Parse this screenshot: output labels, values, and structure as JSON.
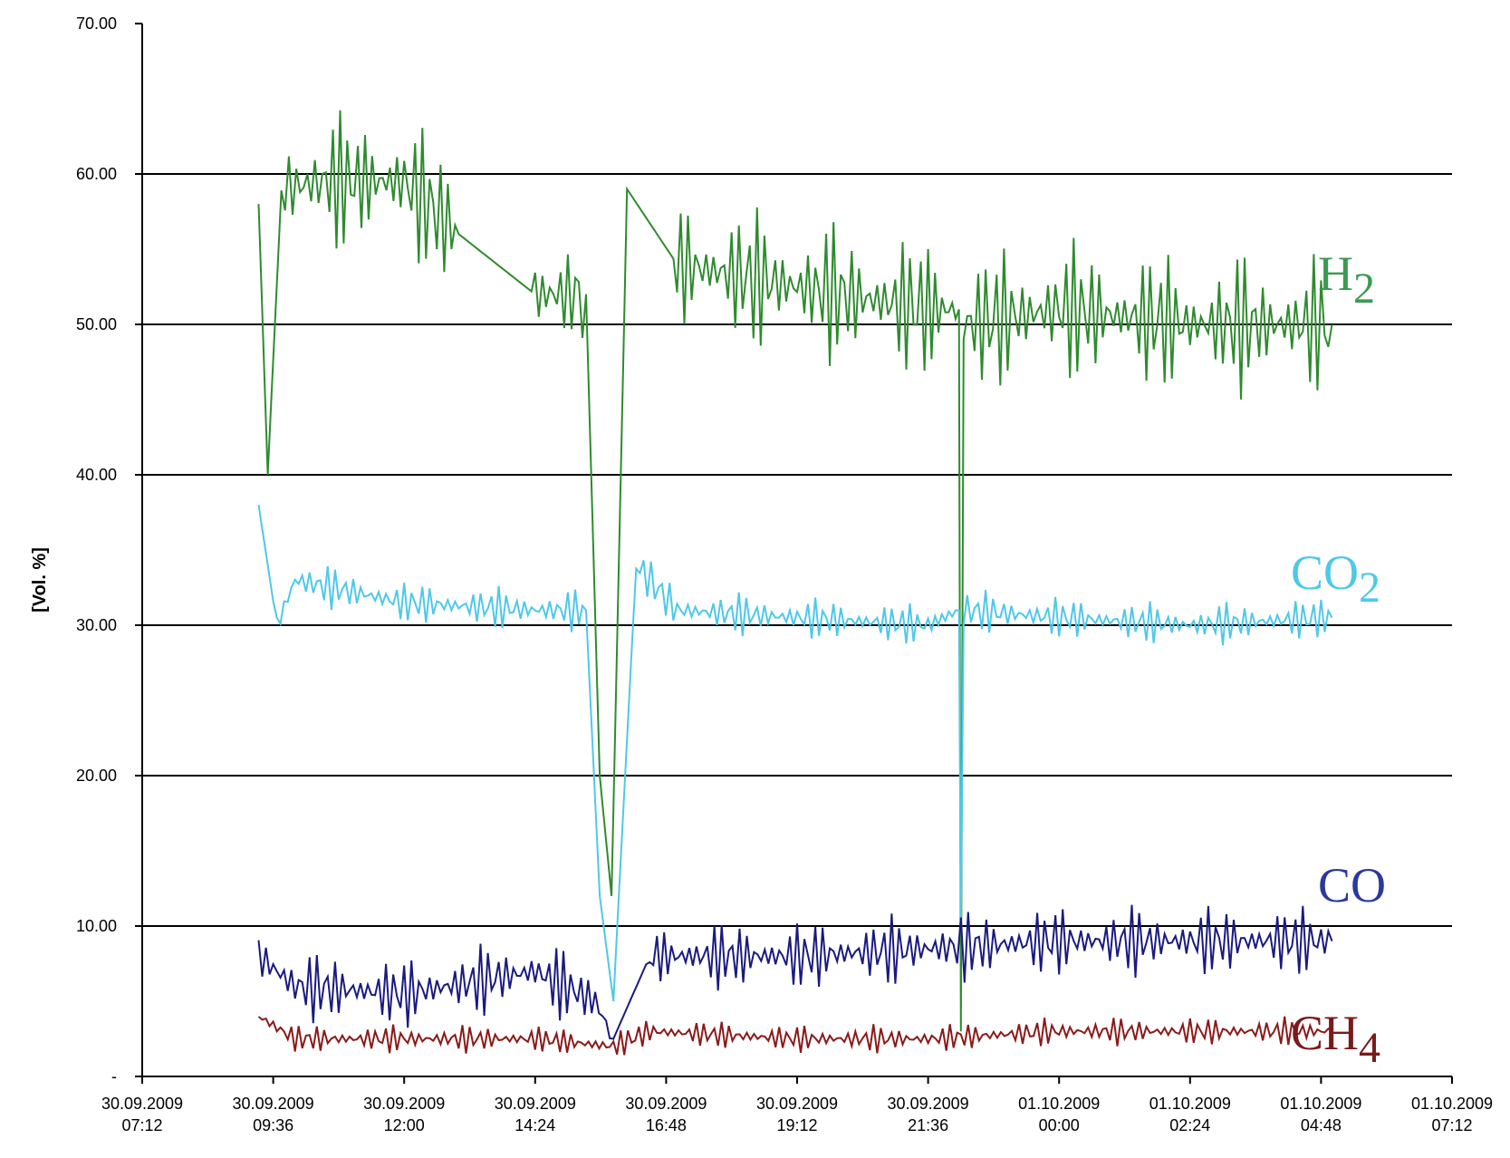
{
  "chart_data": {
    "type": "line",
    "ylabel": "[Vol. %]",
    "ylim": [
      0,
      70
    ],
    "y_ticks": [
      "-",
      "10.00",
      "20.00",
      "30.00",
      "40.00",
      "50.00",
      "60.00",
      "70.00"
    ],
    "y_tick_values": [
      0,
      10,
      20,
      30,
      40,
      50,
      60,
      70
    ],
    "xlim": [
      "2009-09-30T07:12",
      "2009-10-01T07:12"
    ],
    "x_ticks": [
      {
        "date": "30.09.2009",
        "time": "07:12"
      },
      {
        "date": "30.09.2009",
        "time": "09:36"
      },
      {
        "date": "30.09.2009",
        "time": "12:00"
      },
      {
        "date": "30.09.2009",
        "time": "14:24"
      },
      {
        "date": "30.09.2009",
        "time": "16:48"
      },
      {
        "date": "30.09.2009",
        "time": "19:12"
      },
      {
        "date": "30.09.2009",
        "time": "21:36"
      },
      {
        "date": "01.10.2009",
        "time": "00:00"
      },
      {
        "date": "01.10.2009",
        "time": "02:24"
      },
      {
        "date": "01.10.2009",
        "time": "04:48"
      },
      {
        "date": "01.10.2009",
        "time": "07:12"
      }
    ],
    "grid": "horizontal",
    "legend": "series labels at right edge",
    "series": [
      {
        "name": "H",
        "subscript": "2",
        "color": "#2e8b2e",
        "label_color": "#3a9a50",
        "band": [
          46,
          56
        ],
        "points": [
          {
            "t": "2009-09-30T09:20",
            "v": 58.0
          },
          {
            "t": "2009-09-30T09:30",
            "v": 40.0
          },
          {
            "t": "2009-09-30T09:45",
            "v": 59.0
          },
          {
            "t": "2009-09-30T10:30",
            "v": 59.5
          },
          {
            "t": "2009-09-30T12:00",
            "v": 59.5
          },
          {
            "t": "2009-09-30T13:00",
            "v": 56.0
          },
          {
            "t": "2009-09-30T14:24",
            "v": 52.0
          },
          {
            "t": "2009-09-30T15:20",
            "v": 52.0
          },
          {
            "t": "2009-09-30T15:35",
            "v": 20.0
          },
          {
            "t": "2009-09-30T15:48",
            "v": 12.0
          },
          {
            "t": "2009-09-30T16:05",
            "v": 59.0
          },
          {
            "t": "2009-09-30T17:00",
            "v": 54.0
          },
          {
            "t": "2009-09-30T19:12",
            "v": 52.5
          },
          {
            "t": "2009-09-30T21:36",
            "v": 51.0
          },
          {
            "t": "2009-09-30T22:10",
            "v": 51.0
          },
          {
            "t": "2009-09-30T22:12",
            "v": 3.0
          },
          {
            "t": "2009-09-30T22:15",
            "v": 50.0
          },
          {
            "t": "2009-10-01T00:00",
            "v": 51.0
          },
          {
            "t": "2009-10-01T02:24",
            "v": 50.0
          },
          {
            "t": "2009-10-01T05:00",
            "v": 50.0
          }
        ]
      },
      {
        "name": "CO",
        "subscript": "2",
        "color": "#4fc8e8",
        "label_color": "#4fc8e8",
        "band": [
          29,
          32
        ],
        "points": [
          {
            "t": "2009-09-30T09:20",
            "v": 38.0
          },
          {
            "t": "2009-09-30T09:40",
            "v": 30.0
          },
          {
            "t": "2009-09-30T10:00",
            "v": 33.0
          },
          {
            "t": "2009-09-30T12:00",
            "v": 31.5
          },
          {
            "t": "2009-09-30T14:24",
            "v": 31.0
          },
          {
            "t": "2009-09-30T15:20",
            "v": 31.0
          },
          {
            "t": "2009-09-30T15:35",
            "v": 12.0
          },
          {
            "t": "2009-09-30T15:50",
            "v": 5.0
          },
          {
            "t": "2009-09-30T16:15",
            "v": 34.0
          },
          {
            "t": "2009-09-30T17:00",
            "v": 31.0
          },
          {
            "t": "2009-09-30T19:12",
            "v": 30.5
          },
          {
            "t": "2009-09-30T21:36",
            "v": 30.0
          },
          {
            "t": "2009-09-30T22:10",
            "v": 31.0
          },
          {
            "t": "2009-09-30T22:12",
            "v": 10.5
          },
          {
            "t": "2009-09-30T22:15",
            "v": 31.0
          },
          {
            "t": "2009-10-01T00:00",
            "v": 30.5
          },
          {
            "t": "2009-10-01T02:24",
            "v": 30.0
          },
          {
            "t": "2009-10-01T05:00",
            "v": 30.5
          }
        ]
      },
      {
        "name": "CO",
        "subscript": "",
        "color": "#1a1a80",
        "label_color": "#2a3a9a",
        "band": [
          4,
          9
        ],
        "points": [
          {
            "t": "2009-09-30T09:20",
            "v": 8.0
          },
          {
            "t": "2009-09-30T10:00",
            "v": 6.0
          },
          {
            "t": "2009-09-30T12:00",
            "v": 5.5
          },
          {
            "t": "2009-09-30T14:24",
            "v": 7.0
          },
          {
            "t": "2009-09-30T15:30",
            "v": 5.0
          },
          {
            "t": "2009-09-30T15:50",
            "v": 2.5
          },
          {
            "t": "2009-09-30T16:30",
            "v": 8.0
          },
          {
            "t": "2009-09-30T19:12",
            "v": 8.0
          },
          {
            "t": "2009-09-30T21:36",
            "v": 8.5
          },
          {
            "t": "2009-10-01T00:00",
            "v": 9.0
          },
          {
            "t": "2009-10-01T02:24",
            "v": 9.0
          },
          {
            "t": "2009-10-01T05:00",
            "v": 9.0
          }
        ]
      },
      {
        "name": "CH",
        "subscript": "4",
        "color": "#8b1a1a",
        "label_color": "#7a1a1a",
        "band": [
          1.5,
          3.5
        ],
        "points": [
          {
            "t": "2009-09-30T09:20",
            "v": 4.0
          },
          {
            "t": "2009-09-30T10:00",
            "v": 2.5
          },
          {
            "t": "2009-09-30T12:00",
            "v": 2.5
          },
          {
            "t": "2009-09-30T14:24",
            "v": 2.5
          },
          {
            "t": "2009-09-30T15:50",
            "v": 2.0
          },
          {
            "t": "2009-09-30T16:30",
            "v": 3.0
          },
          {
            "t": "2009-09-30T19:12",
            "v": 2.5
          },
          {
            "t": "2009-09-30T21:36",
            "v": 2.5
          },
          {
            "t": "2009-10-01T00:00",
            "v": 3.0
          },
          {
            "t": "2009-10-01T02:24",
            "v": 3.0
          },
          {
            "t": "2009-10-01T05:00",
            "v": 3.0
          }
        ]
      }
    ]
  }
}
